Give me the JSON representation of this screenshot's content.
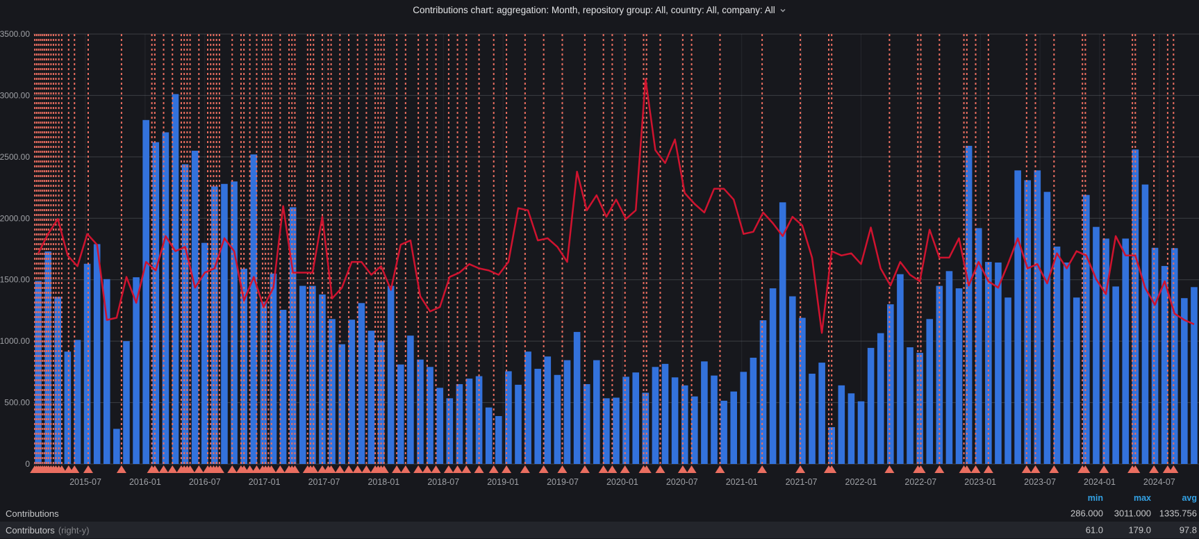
{
  "panel": {
    "title": "Contributions chart: aggregation: Month, repository group: All, country: All, company: All"
  },
  "legend": {
    "headers": [
      "min",
      "max",
      "avg"
    ],
    "rows": [
      {
        "label": "Contributions",
        "suffix": "",
        "min": "286.000",
        "max": "3011.000",
        "avg": "1335.756"
      },
      {
        "label": "Contributors",
        "suffix": "(right-y)",
        "min": "61.0",
        "max": "179.0",
        "avg": "97.8"
      }
    ]
  },
  "colors": {
    "background": "#17181D",
    "bar": "#3372DC",
    "line": "#D0132F",
    "annotation": "#EA6E60",
    "grid_h": "rgba(170,175,185,0.25)",
    "grid_v": "rgba(170,175,185,0.10)",
    "axis_text": "#9FA1A6",
    "legend_header": "#33A2E5",
    "row_highlight": "#23252B"
  },
  "chart_data": {
    "type": "bar",
    "title": "Contributions chart: aggregation: Month, repository group: All, country: All, company: All",
    "xlabel": "",
    "ylabel": "",
    "left_axis": {
      "min": 0,
      "max": 3500,
      "tick_labels": [
        "3500.00",
        "3000.00",
        "2500.00",
        "2000.00",
        "1500.00",
        "1000.00",
        "500.00",
        "0"
      ]
    },
    "right_axis": {
      "min": 0,
      "max": 200,
      "visible_labels": false
    },
    "x_tick_labels": [
      "2015-07",
      "2016-01",
      "2016-07",
      "2017-01",
      "2017-07",
      "2018-01",
      "2018-07",
      "2019-01",
      "2019-07",
      "2020-01",
      "2020-07",
      "2021-01",
      "2021-07",
      "2022-01",
      "2022-07",
      "2023-01",
      "2023-07",
      "2024-01",
      "2024-07"
    ],
    "grid": true,
    "legend_position": "bottom",
    "series": [
      {
        "name": "Contributions",
        "type": "bar",
        "axis": "left",
        "min": 286.0,
        "max": 3011.0,
        "avg": 1335.756,
        "values": [
          1490,
          1730,
          1360,
          915,
          1010,
          1630,
          1790,
          1505,
          286,
          1000,
          1520,
          2800,
          2620,
          2700,
          3011,
          2440,
          2550,
          1800,
          2260,
          2280,
          2300,
          1590,
          2520,
          1320,
          1550,
          1255,
          2090,
          1450,
          1450,
          1380,
          1180,
          975,
          1175,
          1310,
          1085,
          1000,
          1450,
          810,
          1045,
          850,
          790,
          620,
          535,
          650,
          695,
          715,
          460,
          390,
          755,
          645,
          915,
          775,
          875,
          725,
          845,
          1075,
          650,
          845,
          535,
          540,
          710,
          745,
          580,
          790,
          815,
          705,
          640,
          550,
          835,
          720,
          515,
          590,
          750,
          865,
          1170,
          1430,
          2130,
          1365,
          1190,
          735,
          825,
          300,
          640,
          575,
          510,
          945,
          1065,
          1300,
          1545,
          950,
          905,
          1180,
          1450,
          1570,
          1430,
          2590,
          1920,
          1645,
          1640,
          1355,
          2390,
          2310,
          2390,
          2215,
          1770,
          1640,
          1355,
          2190,
          1930,
          1835,
          1445,
          1835,
          2560,
          2275,
          1760,
          1612,
          1757,
          1350,
          1440
        ]
      },
      {
        "name": "Contributors (right-y)",
        "type": "line",
        "axis": "right",
        "min": 61.0,
        "max": 179.0,
        "avg": 97.8,
        "values": [
          98,
          107,
          114,
          97,
          92,
          107,
          102,
          67,
          68,
          87,
          75,
          94,
          90,
          106,
          99,
          101,
          82,
          89,
          91,
          105,
          99,
          76,
          87,
          73,
          82,
          120,
          89,
          89,
          89,
          115,
          77,
          82,
          94,
          94,
          88,
          92,
          81,
          102,
          104,
          78,
          71,
          73,
          87,
          89,
          93,
          91,
          90,
          88,
          94,
          119,
          118,
          104,
          105,
          101,
          94,
          136,
          118,
          125,
          115,
          123,
          114,
          118,
          179,
          146,
          140,
          151,
          126,
          121,
          117,
          128,
          128,
          123,
          107,
          108,
          117,
          112,
          106,
          115,
          111,
          96,
          61,
          99,
          97,
          98,
          93,
          110,
          91,
          83,
          94,
          88,
          85,
          109,
          96,
          96,
          105,
          83,
          94,
          85,
          82,
          93,
          105,
          91,
          93,
          84,
          98,
          91,
          99,
          97,
          86,
          79,
          106,
          97,
          97,
          82,
          74,
          85,
          70,
          67,
          65
        ]
      }
    ],
    "annotations": {
      "style": "vertical-dashed-lines-with-bottom-triangles",
      "positions_month_units": [
        0.15,
        0.35,
        0.55,
        0.75,
        0.95,
        1.15,
        1.35,
        1.55,
        1.8,
        2.05,
        2.3,
        2.6,
        2.9,
        3.6,
        4.2,
        5.6,
        9.0,
        12.1,
        12.4,
        13.3,
        14.2,
        15.1,
        15.4,
        15.7,
        16.0,
        16.9,
        17.8,
        18.1,
        18.4,
        18.7,
        19.0,
        20.3,
        21.2,
        21.5,
        22.1,
        22.8,
        23.4,
        23.7,
        24.0,
        24.3,
        25.2,
        26.1,
        26.4,
        26.7,
        28.0,
        28.3,
        28.6,
        29.5,
        30.1,
        30.4,
        31.3,
        32.2,
        33.1,
        34.0,
        34.9,
        35.2,
        35.5,
        35.8,
        37.1,
        38.0,
        39.3,
        40.2,
        41.1,
        42.4,
        43.3,
        44.2,
        45.5,
        47.0,
        48.3,
        50.2,
        52.1,
        54.0,
        56.3,
        58.2,
        59.1,
        60.4,
        62.3,
        62.6,
        64.0,
        66.3,
        67.2,
        70.1,
        74.4,
        78.3,
        81.2,
        81.5,
        87.4,
        90.3,
        90.6,
        92.5,
        95.0,
        95.3,
        96.2,
        97.5,
        101.4,
        102.3,
        104.2,
        107.1,
        107.4,
        109.3,
        112.2,
        112.5,
        114.4,
        115.8,
        116.4
      ]
    }
  }
}
